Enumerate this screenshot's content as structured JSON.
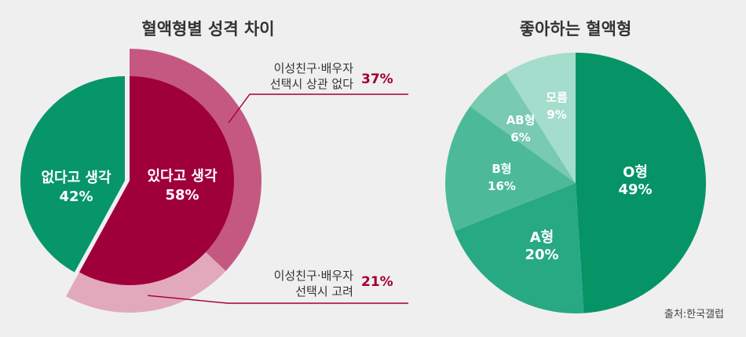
{
  "chart_data": [
    {
      "type": "pie",
      "title": "혈액형별 성격 차이",
      "slices": [
        {
          "label": "있다고 생각",
          "value": 58,
          "display": "58%",
          "color": "#a0003a"
        },
        {
          "label": "없다고 생각",
          "value": 42,
          "display": "42%",
          "color": "#079669"
        }
      ],
      "breakdown": [
        {
          "label_line1": "이성친구·배우자",
          "label_line2": "선택시 상관 없다",
          "value": 37,
          "display": "37%",
          "color": "#c55880"
        },
        {
          "label_line1": "이성친구·배우자",
          "label_line2": "선택시 고려",
          "value": 21,
          "display": "21%",
          "color": "#e2a9bd"
        }
      ]
    },
    {
      "type": "pie",
      "title": "좋아하는 혈액형",
      "slices": [
        {
          "label": "O형",
          "value": 49,
          "display": "49%",
          "color": "#069467"
        },
        {
          "label": "A형",
          "value": 20,
          "display": "20%",
          "color": "#27a983"
        },
        {
          "label": "B형",
          "value": 16,
          "display": "16%",
          "color": "#4cba98"
        },
        {
          "label": "AB형",
          "value": 6,
          "display": "6%",
          "color": "#78cab1"
        },
        {
          "label": "모름",
          "value": 9,
          "display": "9%",
          "color": "#a4ddcb"
        }
      ]
    }
  ],
  "source": "출처:한국갤럽"
}
